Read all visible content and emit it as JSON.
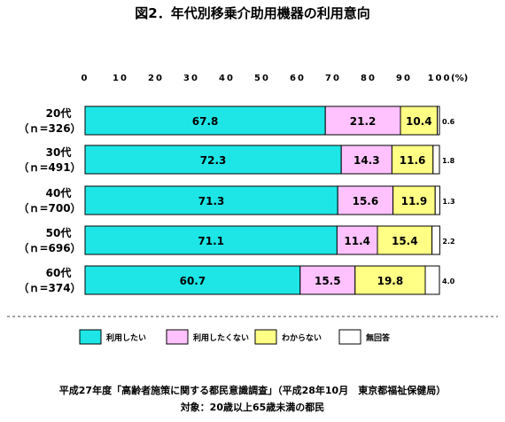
{
  "chart_data": {
    "type": "bar",
    "orientation": "horizontal",
    "stacked": true,
    "title": "図2．年代別移乗介助用機器の利用意向",
    "unit_label": "(%)",
    "xlim": [
      0,
      100
    ],
    "ticks": [
      "0",
      "10",
      "20",
      "30",
      "40",
      "50",
      "60",
      "70",
      "80",
      "90",
      "100"
    ],
    "categories": [
      {
        "name": "20代",
        "n": "（ｎ=326）"
      },
      {
        "name": "30代",
        "n": "（ｎ=491）"
      },
      {
        "name": "40代",
        "n": "（ｎ=700）"
      },
      {
        "name": "50代",
        "n": "（ｎ=696）"
      },
      {
        "name": "60代",
        "n": "（ｎ=374）"
      }
    ],
    "series": [
      {
        "name": "利用したい",
        "color": "#1ee6e6",
        "values": [
          67.8,
          72.3,
          71.3,
          71.1,
          60.7
        ]
      },
      {
        "name": "利用したくない",
        "color": "#ffc2ff",
        "values": [
          21.2,
          14.3,
          15.6,
          11.4,
          15.5
        ]
      },
      {
        "name": "わからない",
        "color": "#ffff85",
        "values": [
          10.4,
          11.6,
          11.9,
          15.4,
          19.8
        ]
      },
      {
        "name": "無回答",
        "color": "#ffffff",
        "values": [
          0.6,
          1.8,
          1.3,
          2.2,
          4.0
        ]
      }
    ],
    "value_labels": [
      [
        "67.8",
        "21.2",
        "10.4",
        "0.6"
      ],
      [
        "72.3",
        "14.3",
        "11.6",
        "1.8"
      ],
      [
        "71.3",
        "15.6",
        "11.9",
        "1.3"
      ],
      [
        "71.1",
        "11.4",
        "15.4",
        "2.2"
      ],
      [
        "60.7",
        "15.5",
        "19.8",
        "4.0"
      ]
    ],
    "legend_position": "bottom",
    "grid": false
  },
  "footnote": {
    "source": "平成27年度「高齢者施策に関する都民意識調査」（平成28年10月　東京都福祉保健局）",
    "target": "対象：20歳以上65歳未満の都民"
  }
}
